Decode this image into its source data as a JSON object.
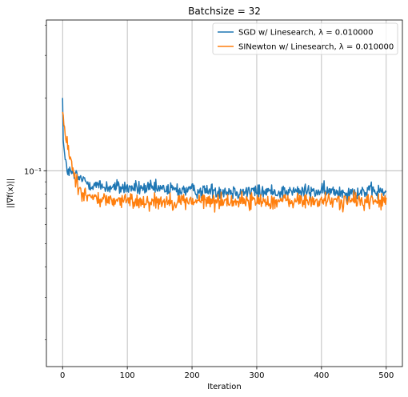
{
  "chart_data": {
    "type": "line",
    "title": "Batchsize = 32",
    "xlabel": "Iteration",
    "ylabel": "||∇f(x)||",
    "yscale": "log",
    "xlim": [
      -25,
      525
    ],
    "ylim": [
      0.0155,
      0.42
    ],
    "grid": true,
    "legend_position": "top-right",
    "x_ticks": [
      0,
      100,
      200,
      300,
      400,
      500
    ],
    "x_tick_labels": [
      "0",
      "100",
      "200",
      "300",
      "400",
      "500"
    ],
    "y_major_ticks": [
      0.1
    ],
    "y_major_tick_labels": [
      "10⁻¹"
    ],
    "y_minor_ticks": [
      0.02,
      0.03,
      0.04,
      0.05,
      0.06,
      0.07,
      0.08,
      0.09,
      0.2,
      0.3,
      0.4
    ],
    "x_count": 501,
    "series": [
      {
        "name": "SGD w/ Linesearch, λ = 0.010000",
        "color": "#1f77b4",
        "anchors": [
          [
            0,
            0.2
          ],
          [
            1,
            0.14
          ],
          [
            2,
            0.125
          ],
          [
            4,
            0.11
          ],
          [
            6,
            0.103
          ],
          [
            10,
            0.099
          ],
          [
            20,
            0.095
          ],
          [
            40,
            0.089
          ],
          [
            60,
            0.086
          ],
          [
            100,
            0.085
          ],
          [
            200,
            0.083
          ],
          [
            300,
            0.082
          ],
          [
            400,
            0.082
          ],
          [
            500,
            0.082
          ]
        ],
        "noise": 0.035
      },
      {
        "name": "SINewton w/ Linesearch, λ = 0.010000",
        "color": "#ff7f0e",
        "anchors": [
          [
            0,
            0.175
          ],
          [
            2,
            0.155
          ],
          [
            4,
            0.14
          ],
          [
            8,
            0.125
          ],
          [
            12,
            0.112
          ],
          [
            16,
            0.102
          ],
          [
            20,
            0.092
          ],
          [
            25,
            0.086
          ],
          [
            30,
            0.082
          ],
          [
            40,
            0.078
          ],
          [
            60,
            0.076
          ],
          [
            100,
            0.075
          ],
          [
            200,
            0.075
          ],
          [
            300,
            0.075
          ],
          [
            400,
            0.075
          ],
          [
            500,
            0.075
          ]
        ],
        "noise": 0.038
      }
    ]
  }
}
